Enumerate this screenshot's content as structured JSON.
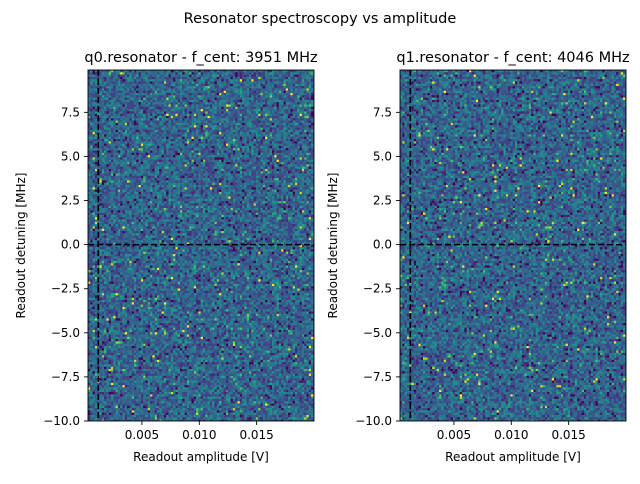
{
  "figure": {
    "suptitle": "Resonator spectroscopy vs amplitude"
  },
  "colors": {
    "colormap": "viridis",
    "guide_lines": "#000000",
    "background": "#ffffff"
  },
  "chart_data": [
    {
      "type": "heatmap",
      "title": "q0.resonator - f_cent: 3951 MHz",
      "xlabel": "Readout amplitude [V]",
      "ylabel": "Readout detuning [MHz]",
      "xlim": [
        0.0003,
        0.02
      ],
      "ylim": [
        -10.0,
        9.9
      ],
      "xticks": [
        0.005,
        0.01,
        0.015
      ],
      "xtick_labels": [
        "0.005",
        "0.010",
        "0.015"
      ],
      "yticks": [
        7.5,
        5.0,
        2.5,
        0.0,
        -2.5,
        -5.0,
        -7.5,
        -10.0
      ],
      "ytick_labels": [
        "7.5",
        "5.0",
        "2.5",
        "0.0",
        "−2.5",
        "−5.0",
        "−7.5",
        "−10.0"
      ],
      "grid": false,
      "guides": {
        "vertical_x": 0.0012,
        "horizontal_y": 0.0,
        "style": "dashed"
      },
      "colormap": "viridis",
      "z_description": "noise-like magnitude, mostly low values with sparse bright pixels"
    },
    {
      "type": "heatmap",
      "title": "q1.resonator - f_cent: 4046 MHz",
      "xlabel": "Readout amplitude [V]",
      "ylabel": "Readout detuning [MHz]",
      "xlim": [
        0.0003,
        0.02
      ],
      "ylim": [
        -10.0,
        9.9
      ],
      "xticks": [
        0.005,
        0.01,
        0.015
      ],
      "xtick_labels": [
        "0.005",
        "0.010",
        "0.015"
      ],
      "yticks": [
        7.5,
        5.0,
        2.5,
        0.0,
        -2.5,
        -5.0,
        -7.5,
        -10.0
      ],
      "ytick_labels": [
        "7.5",
        "5.0",
        "2.5",
        "0.0",
        "−2.5",
        "−5.0",
        "−7.5",
        "−10.0"
      ],
      "grid": false,
      "guides": {
        "vertical_x": 0.0012,
        "horizontal_y": 0.0,
        "style": "dashed"
      },
      "colormap": "viridis",
      "z_description": "noise-like magnitude, mostly low values with sparse bright pixels"
    }
  ]
}
